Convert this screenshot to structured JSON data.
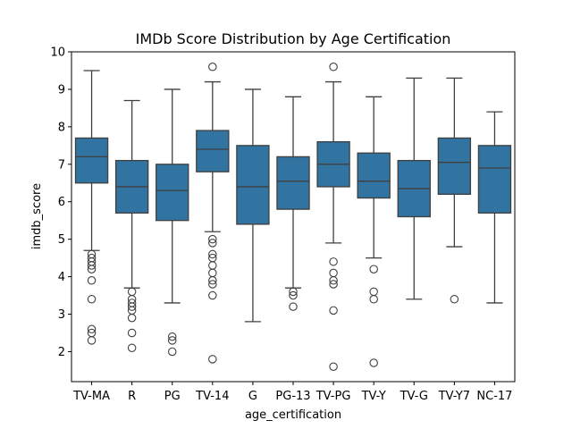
{
  "chart_data": {
    "type": "boxplot",
    "title": "IMDb Score Distribution by Age Certification",
    "xlabel": "age_certification",
    "ylabel": "imdb_score",
    "ylim": [
      1.2,
      10
    ],
    "yticks": [
      2,
      3,
      4,
      5,
      6,
      7,
      8,
      9,
      10
    ],
    "grid": false,
    "box_color": "#3274a1",
    "line_color": "#3f3f3f",
    "categories": [
      "TV-MA",
      "R",
      "PG",
      "TV-14",
      "G",
      "PG-13",
      "TV-PG",
      "TV-Y",
      "TV-G",
      "TV-Y7",
      "NC-17"
    ],
    "boxes": [
      {
        "label": "TV-MA",
        "whislo": 4.7,
        "q1": 6.5,
        "med": 7.2,
        "q3": 7.7,
        "whishi": 9.5,
        "fliers": [
          4.6,
          4.5,
          4.4,
          4.3,
          4.2,
          3.9,
          3.4,
          2.6,
          2.5,
          2.3
        ]
      },
      {
        "label": "R",
        "whislo": 3.7,
        "q1": 5.7,
        "med": 6.4,
        "q3": 7.1,
        "whishi": 8.7,
        "fliers": [
          3.6,
          3.4,
          3.3,
          3.2,
          3.1,
          2.9,
          2.5,
          2.1
        ]
      },
      {
        "label": "PG",
        "whislo": 3.3,
        "q1": 5.5,
        "med": 6.3,
        "q3": 7.0,
        "whishi": 9.0,
        "fliers": [
          2.4,
          2.3,
          2.0
        ]
      },
      {
        "label": "TV-14",
        "whislo": 5.2,
        "q1": 6.8,
        "med": 7.4,
        "q3": 7.9,
        "whishi": 9.2,
        "fliers": [
          9.6,
          5.0,
          4.9,
          4.6,
          4.5,
          4.3,
          4.1,
          3.9,
          3.8,
          3.5,
          1.8
        ]
      },
      {
        "label": "G",
        "whislo": 2.8,
        "q1": 5.4,
        "med": 6.4,
        "q3": 7.5,
        "whishi": 9.0,
        "fliers": []
      },
      {
        "label": "PG-13",
        "whislo": 3.7,
        "q1": 5.8,
        "med": 6.55,
        "q3": 7.2,
        "whishi": 8.8,
        "fliers": [
          3.6,
          3.5,
          3.2
        ]
      },
      {
        "label": "TV-PG",
        "whislo": 4.9,
        "q1": 6.4,
        "med": 7.0,
        "q3": 7.6,
        "whishi": 9.2,
        "fliers": [
          9.6,
          4.4,
          4.1,
          3.9,
          3.8,
          3.1,
          1.6
        ]
      },
      {
        "label": "TV-Y",
        "whislo": 4.5,
        "q1": 6.1,
        "med": 6.55,
        "q3": 7.3,
        "whishi": 8.8,
        "fliers": [
          4.2,
          3.6,
          3.4,
          1.7
        ]
      },
      {
        "label": "TV-G",
        "whislo": 3.4,
        "q1": 5.6,
        "med": 6.35,
        "q3": 7.1,
        "whishi": 9.3,
        "fliers": []
      },
      {
        "label": "TV-Y7",
        "whislo": 4.8,
        "q1": 6.2,
        "med": 7.05,
        "q3": 7.7,
        "whishi": 9.3,
        "fliers": [
          3.4
        ]
      },
      {
        "label": "NC-17",
        "whislo": 3.3,
        "q1": 5.7,
        "med": 6.9,
        "q3": 7.5,
        "whishi": 8.4,
        "fliers": []
      }
    ]
  }
}
